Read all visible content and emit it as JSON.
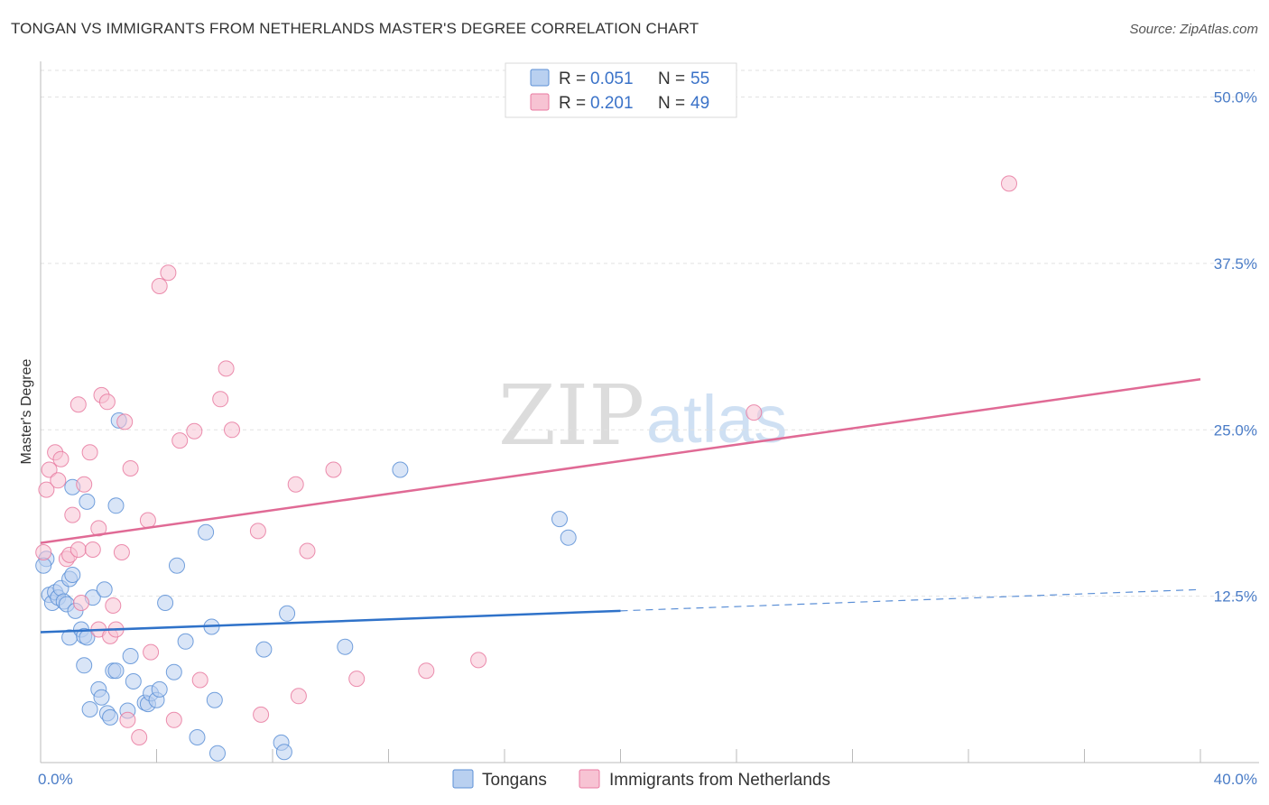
{
  "title": "TONGAN VS IMMIGRANTS FROM NETHERLANDS MASTER'S DEGREE CORRELATION CHART",
  "source": "Source: ZipAtlas.com",
  "chart_data": {
    "type": "scatter",
    "title": "TONGAN VS IMMIGRANTS FROM NETHERLANDS MASTER'S DEGREE CORRELATION CHART",
    "xlabel": "",
    "ylabel": "Master's Degree",
    "xlim": [
      0,
      40
    ],
    "ylim": [
      0,
      52
    ],
    "x_tick_labels": [
      "0.0%",
      "40.0%"
    ],
    "y_ticks": [
      12.5,
      25.0,
      37.5,
      50.0
    ],
    "y_tick_labels": [
      "12.5%",
      "25.0%",
      "37.5%",
      "50.0%"
    ],
    "grid": true,
    "watermark": {
      "zip": "ZIP",
      "atlas": "atlas"
    },
    "legend_top": [
      {
        "r_label": "R = ",
        "r_value": "0.051",
        "n_label": "N = ",
        "n_value": "55"
      },
      {
        "r_label": "R = ",
        "r_value": "0.201",
        "n_label": "N = ",
        "n_value": "49"
      }
    ],
    "series": [
      {
        "name": "Tongans",
        "color": "#5b8fd6",
        "fill": "#b9d0f0",
        "trend": {
          "x0": 0,
          "y0": 9.8,
          "x1": 20,
          "y1": 11.4,
          "dash_x1": 40,
          "dash_y1": 13.0
        },
        "points": [
          [
            0.2,
            15.3
          ],
          [
            0.1,
            14.8
          ],
          [
            0.3,
            12.6
          ],
          [
            0.4,
            12.0
          ],
          [
            0.5,
            12.8
          ],
          [
            0.6,
            12.4
          ],
          [
            0.7,
            13.1
          ],
          [
            0.8,
            12.1
          ],
          [
            0.9,
            11.9
          ],
          [
            1.0,
            13.8
          ],
          [
            1.1,
            14.1
          ],
          [
            1.2,
            11.4
          ],
          [
            1.0,
            9.4
          ],
          [
            1.4,
            10.0
          ],
          [
            1.5,
            9.5
          ],
          [
            1.6,
            9.4
          ],
          [
            1.8,
            12.4
          ],
          [
            2.2,
            13.0
          ],
          [
            1.1,
            20.7
          ],
          [
            1.6,
            19.6
          ],
          [
            2.6,
            19.3
          ],
          [
            2.7,
            25.7
          ],
          [
            1.5,
            7.3
          ],
          [
            2.0,
            5.5
          ],
          [
            2.1,
            4.9
          ],
          [
            1.7,
            4.0
          ],
          [
            2.3,
            3.7
          ],
          [
            2.4,
            3.4
          ],
          [
            2.5,
            6.9
          ],
          [
            2.6,
            6.9
          ],
          [
            3.1,
            8.0
          ],
          [
            3.2,
            6.1
          ],
          [
            3.0,
            3.9
          ],
          [
            3.6,
            4.5
          ],
          [
            3.7,
            4.4
          ],
          [
            3.8,
            5.2
          ],
          [
            4.0,
            4.7
          ],
          [
            4.1,
            5.5
          ],
          [
            4.3,
            12.0
          ],
          [
            4.7,
            14.8
          ],
          [
            4.6,
            6.8
          ],
          [
            5.0,
            9.1
          ],
          [
            5.7,
            17.3
          ],
          [
            5.9,
            10.2
          ],
          [
            6.0,
            4.7
          ],
          [
            5.4,
            1.9
          ],
          [
            6.1,
            0.7
          ],
          [
            7.7,
            8.5
          ],
          [
            8.5,
            11.2
          ],
          [
            8.3,
            1.5
          ],
          [
            8.4,
            0.8
          ],
          [
            10.5,
            8.7
          ],
          [
            12.4,
            22.0
          ],
          [
            17.9,
            18.3
          ],
          [
            18.2,
            16.9
          ]
        ]
      },
      {
        "name": "Immigrants from Netherlands",
        "color": "#e87aa0",
        "fill": "#f7c3d3",
        "trend": {
          "x0": 0,
          "y0": 16.5,
          "x1": 40,
          "y1": 28.8
        },
        "points": [
          [
            0.1,
            15.8
          ],
          [
            0.2,
            20.5
          ],
          [
            0.3,
            22.0
          ],
          [
            0.5,
            23.3
          ],
          [
            0.6,
            21.2
          ],
          [
            0.7,
            22.8
          ],
          [
            0.9,
            15.3
          ],
          [
            1.0,
            15.6
          ],
          [
            1.1,
            18.6
          ],
          [
            1.3,
            16.0
          ],
          [
            1.3,
            26.9
          ],
          [
            1.4,
            12.0
          ],
          [
            1.5,
            20.9
          ],
          [
            1.7,
            23.3
          ],
          [
            1.8,
            16.0
          ],
          [
            2.0,
            10.0
          ],
          [
            2.0,
            17.6
          ],
          [
            2.1,
            27.6
          ],
          [
            2.3,
            27.1
          ],
          [
            2.4,
            9.5
          ],
          [
            2.5,
            11.8
          ],
          [
            2.6,
            10.0
          ],
          [
            2.8,
            15.8
          ],
          [
            2.9,
            25.6
          ],
          [
            3.1,
            22.1
          ],
          [
            3.0,
            3.2
          ],
          [
            3.4,
            1.9
          ],
          [
            3.7,
            18.2
          ],
          [
            3.8,
            8.3
          ],
          [
            4.1,
            35.8
          ],
          [
            4.4,
            36.8
          ],
          [
            4.6,
            3.2
          ],
          [
            4.8,
            24.2
          ],
          [
            5.3,
            24.9
          ],
          [
            5.5,
            6.2
          ],
          [
            6.2,
            27.3
          ],
          [
            6.4,
            29.6
          ],
          [
            6.6,
            25.0
          ],
          [
            7.5,
            17.4
          ],
          [
            7.6,
            3.6
          ],
          [
            8.8,
            20.9
          ],
          [
            8.9,
            5.0
          ],
          [
            9.2,
            15.9
          ],
          [
            10.1,
            22.0
          ],
          [
            10.9,
            6.3
          ],
          [
            13.3,
            6.9
          ],
          [
            15.1,
            7.7
          ],
          [
            24.6,
            26.3
          ],
          [
            33.4,
            43.5
          ]
        ]
      }
    ],
    "legend_bottom": [
      "Tongans",
      "Immigrants from Netherlands"
    ]
  }
}
